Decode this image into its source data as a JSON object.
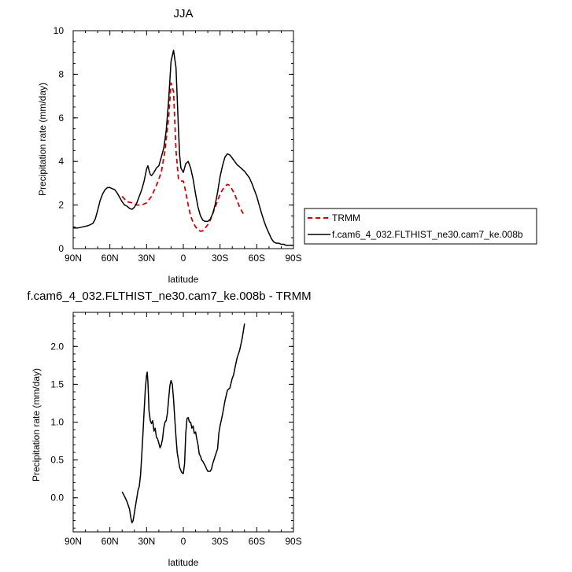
{
  "chart_data": [
    {
      "type": "line",
      "title": "JJA",
      "xlabel": "latitude",
      "ylabel": "Precipitation rate (mm/day)",
      "xlim": [
        90,
        -90
      ],
      "ylim": [
        0,
        10
      ],
      "x_ticks": [
        {
          "value": 90,
          "label": "90N"
        },
        {
          "value": 60,
          "label": "60N"
        },
        {
          "value": 30,
          "label": "30N"
        },
        {
          "value": 0,
          "label": "0"
        },
        {
          "value": -30,
          "label": "30S"
        },
        {
          "value": -60,
          "label": "60S"
        },
        {
          "value": -90,
          "label": "90S"
        }
      ],
      "y_ticks": [
        {
          "value": 0,
          "label": "0"
        },
        {
          "value": 2,
          "label": "2"
        },
        {
          "value": 4,
          "label": "4"
        },
        {
          "value": 6,
          "label": "6"
        },
        {
          "value": 8,
          "label": "8"
        },
        {
          "value": 10,
          "label": "10"
        }
      ],
      "legend": "right, outside plot",
      "series": [
        {
          "name": "TRMM",
          "color": "#dd0000",
          "dash": "dashed",
          "x": [
            50,
            46,
            42,
            38,
            34,
            30,
            26,
            22,
            18,
            15,
            12,
            10,
            8,
            6,
            4,
            2,
            0,
            -2,
            -4,
            -6,
            -8,
            -10,
            -12,
            -14,
            -16,
            -18,
            -20,
            -22,
            -24,
            -26,
            -28,
            -30,
            -32,
            -34,
            -36,
            -38,
            -40,
            -42,
            -44,
            -46,
            -48,
            -50
          ],
          "y": [
            2.4,
            2.15,
            2.1,
            2.0,
            2.0,
            2.1,
            2.4,
            2.9,
            3.5,
            4.5,
            6.0,
            7.6,
            7.2,
            4.5,
            3.2,
            3.1,
            3.1,
            2.6,
            2.0,
            1.5,
            1.2,
            1.0,
            0.85,
            0.8,
            0.82,
            0.95,
            1.1,
            1.3,
            1.6,
            1.9,
            2.2,
            2.5,
            2.7,
            2.85,
            2.95,
            2.9,
            2.7,
            2.5,
            2.2,
            1.9,
            1.7,
            1.5
          ]
        },
        {
          "name": "f.cam6_4_032.FLTHIST_ne30.cam7_ke.008b",
          "color": "#000000",
          "dash": "solid",
          "x": [
            90,
            86,
            82,
            78,
            76,
            74,
            72,
            70,
            68,
            66,
            64,
            62,
            60,
            58,
            56,
            54,
            52,
            50,
            48,
            46,
            44,
            42,
            40,
            38,
            36,
            34,
            32,
            30,
            29,
            28,
            27,
            26,
            24,
            22,
            20,
            18,
            16,
            14,
            12,
            10,
            8,
            6,
            4,
            3,
            2,
            0,
            -2,
            -4,
            -6,
            -8,
            -10,
            -12,
            -14,
            -16,
            -18,
            -20,
            -22,
            -24,
            -26,
            -28,
            -30,
            -32,
            -34,
            -36,
            -38,
            -40,
            -42,
            -44,
            -46,
            -48,
            -50,
            -52,
            -54,
            -56,
            -58,
            -60,
            -62,
            -64,
            -66,
            -68,
            -70,
            -72,
            -74,
            -76,
            -78,
            -80,
            -82,
            -84,
            -86,
            -88,
            -90
          ],
          "y": [
            0.95,
            0.95,
            1.0,
            1.05,
            1.1,
            1.15,
            1.35,
            1.75,
            2.2,
            2.5,
            2.7,
            2.8,
            2.8,
            2.75,
            2.7,
            2.55,
            2.35,
            2.15,
            2.0,
            1.95,
            1.85,
            1.8,
            1.9,
            2.1,
            2.4,
            2.7,
            3.1,
            3.65,
            3.8,
            3.6,
            3.4,
            3.35,
            3.5,
            3.7,
            3.8,
            4.2,
            4.6,
            5.4,
            6.8,
            8.6,
            9.1,
            8.3,
            5.5,
            4.3,
            3.7,
            3.5,
            3.9,
            4.0,
            3.7,
            3.2,
            2.5,
            1.9,
            1.5,
            1.3,
            1.25,
            1.25,
            1.35,
            1.6,
            2.0,
            2.6,
            3.3,
            3.8,
            4.2,
            4.35,
            4.3,
            4.15,
            4.0,
            3.85,
            3.75,
            3.65,
            3.55,
            3.4,
            3.25,
            3.0,
            2.7,
            2.4,
            2.0,
            1.6,
            1.25,
            0.95,
            0.7,
            0.45,
            0.3,
            0.25,
            0.25,
            0.2,
            0.2,
            0.15,
            0.15,
            0.15,
            0.15
          ]
        }
      ]
    },
    {
      "type": "line",
      "title": "f.cam6_4_032.FLTHIST_ne30.cam7_ke.008b - TRMM",
      "xlabel": "latitude",
      "ylabel": "Precipitation rate (mm/day)",
      "xlim": [
        90,
        -90
      ],
      "ylim": [
        -0.45,
        2.45
      ],
      "x_ticks": [
        {
          "value": 90,
          "label": "90N"
        },
        {
          "value": 60,
          "label": "60N"
        },
        {
          "value": 30,
          "label": "30N"
        },
        {
          "value": 0,
          "label": "0"
        },
        {
          "value": -30,
          "label": "30S"
        },
        {
          "value": -60,
          "label": "60S"
        },
        {
          "value": -90,
          "label": "90S"
        }
      ],
      "y_ticks": [
        {
          "value": 0,
          "label": "0.0"
        },
        {
          "value": 0.5,
          "label": "0.5"
        },
        {
          "value": 1,
          "label": "1.0"
        },
        {
          "value": 1.5,
          "label": "1.5"
        },
        {
          "value": 2,
          "label": "2.0"
        }
      ],
      "series": [
        {
          "color": "#000000",
          "dash": "solid",
          "x": [
            50,
            48,
            46,
            44,
            43,
            42,
            41,
            40,
            39,
            38,
            37,
            36,
            35,
            34,
            33,
            32,
            31,
            30,
            29.5,
            29,
            28.5,
            28,
            27,
            26,
            25,
            24,
            23,
            22,
            21,
            20,
            19,
            18,
            17,
            16,
            15,
            14,
            13,
            12,
            11,
            10,
            9,
            8,
            7,
            6,
            5,
            4,
            3,
            2,
            1,
            0,
            -1,
            -2,
            -3,
            -4,
            -5,
            -6,
            -7,
            -8,
            -9,
            -10,
            -11,
            -12,
            -13,
            -14,
            -15,
            -16,
            -17,
            -18,
            -19,
            -20,
            -21,
            -22,
            -23,
            -24,
            -25,
            -26,
            -27,
            -28,
            -29,
            -30,
            -32,
            -34,
            -36,
            -38,
            -40,
            -41,
            -42,
            -44,
            -46,
            -48,
            -50
          ],
          "y": [
            0.08,
            0.02,
            -0.05,
            -0.15,
            -0.25,
            -0.33,
            -0.3,
            -0.2,
            -0.1,
            0.0,
            0.1,
            0.15,
            0.3,
            0.55,
            0.85,
            1.15,
            1.45,
            1.62,
            1.66,
            1.55,
            1.35,
            1.15,
            1.02,
            0.98,
            1.02,
            0.88,
            0.92,
            0.8,
            0.78,
            0.72,
            0.66,
            0.7,
            0.78,
            0.92,
            1.0,
            1.02,
            1.12,
            1.3,
            1.48,
            1.55,
            1.5,
            1.3,
            1.05,
            0.8,
            0.6,
            0.5,
            0.4,
            0.36,
            0.33,
            0.32,
            0.45,
            0.85,
            1.05,
            1.06,
            1.0,
            1.0,
            0.92,
            0.95,
            0.85,
            0.87,
            0.78,
            0.7,
            0.58,
            0.55,
            0.5,
            0.48,
            0.45,
            0.42,
            0.38,
            0.35,
            0.35,
            0.35,
            0.38,
            0.45,
            0.5,
            0.55,
            0.6,
            0.65,
            0.85,
            0.95,
            1.1,
            1.28,
            1.42,
            1.45,
            1.58,
            1.62,
            1.7,
            1.85,
            1.95,
            2.1,
            2.3
          ]
        }
      ]
    }
  ]
}
